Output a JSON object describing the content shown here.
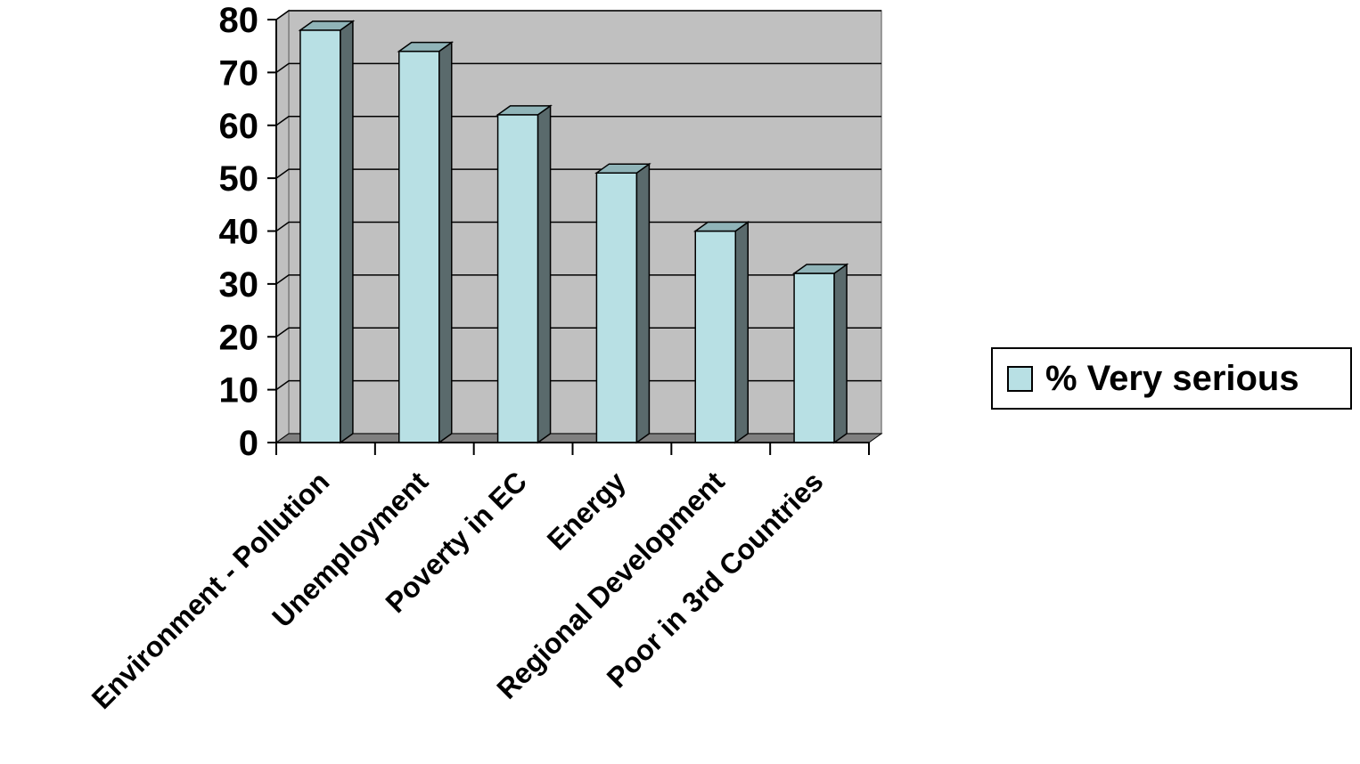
{
  "chart_data": {
    "type": "bar",
    "categories": [
      "Environment - Pollution",
      "Unemployment",
      "Poverty in EC",
      "Energy",
      "Regional Development",
      "Poor in 3rd Countries"
    ],
    "series": [
      {
        "name": "% Very serious",
        "values": [
          78,
          74,
          62,
          51,
          40,
          32
        ]
      }
    ],
    "ylim": [
      0,
      80
    ],
    "yticks": [
      "0",
      "10",
      "20",
      "30",
      "40",
      "50",
      "60",
      "70",
      "80"
    ],
    "grid": true,
    "legend_position": "right",
    "colors": {
      "bar_front": "#b8e0e4",
      "bar_side": "#5a6a6c",
      "bar_top": "#90b4b8",
      "plot_background": "#c0c0c0",
      "floor": "#808080"
    }
  }
}
